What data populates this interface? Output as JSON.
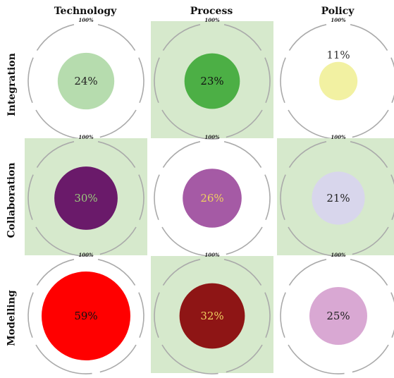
{
  "chart_data": {
    "type": "bubble-matrix",
    "columns": [
      "Technology",
      "Process",
      "Policy"
    ],
    "rows": [
      "Integration",
      "Collaboration",
      "Modelling"
    ],
    "max_label": "100%",
    "value_labels": [
      [
        "24%",
        "23%",
        "11%"
      ],
      [
        "30%",
        "26%",
        "21%"
      ],
      [
        "59%",
        "32%",
        "25%"
      ]
    ],
    "values": [
      [
        24,
        23,
        11
      ],
      [
        30,
        26,
        21
      ],
      [
        59,
        32,
        25
      ]
    ],
    "bubble_colors": [
      [
        "#b6dcae",
        "#4caf45",
        "#f2f1a2"
      ],
      [
        "#6a1a6a",
        "#a55aa5",
        "#d8d6ec"
      ],
      [
        "#ff0000",
        "#8e1515",
        "#d9a8d3"
      ]
    ],
    "label_colors": [
      [
        "#222222",
        "#111111",
        "#333333"
      ],
      [
        "#9acb7c",
        "#f0d060",
        "#222222"
      ],
      [
        "#111111",
        "#f0d060",
        "#222222"
      ]
    ],
    "cell_shaded": [
      [
        false,
        true,
        false
      ],
      [
        true,
        false,
        true
      ],
      [
        false,
        true,
        false
      ]
    ],
    "colors": {
      "shade": "#d6e9cc",
      "ring": "#aaaaaa"
    }
  }
}
